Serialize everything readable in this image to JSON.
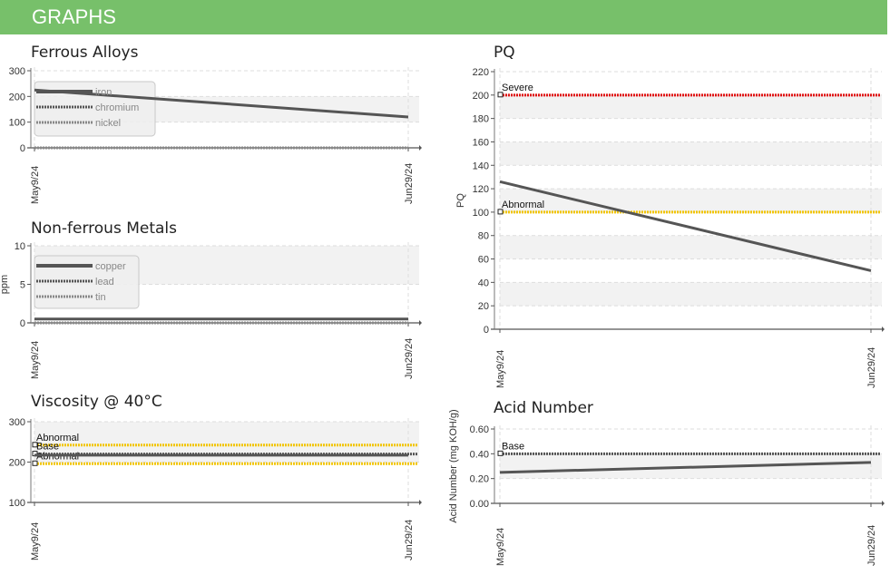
{
  "header": {
    "title": "GRAPHS"
  },
  "chart_data": [
    {
      "id": "ferrous",
      "type": "line",
      "title": "Ferrous Alloys",
      "ylabel": "",
      "ylim": [
        0,
        300
      ],
      "yticks": [
        0,
        100,
        200,
        300
      ],
      "yticks_text": [
        "0",
        "100",
        "200",
        "300"
      ],
      "x": [
        "May9/24",
        "Jun29/24"
      ],
      "series": [
        {
          "name": "iron",
          "values": [
            225,
            120
          ],
          "color": "#555555",
          "style": "solid"
        },
        {
          "name": "chromium",
          "values": [
            0,
            0
          ],
          "color": "#555555",
          "style": "dotted"
        },
        {
          "name": "nickel",
          "values": [
            0,
            0
          ],
          "color": "#888888",
          "style": "dotted"
        }
      ],
      "legend": "top-left",
      "grid": true
    },
    {
      "id": "nonferrous",
      "type": "line",
      "title": "Non-ferrous Metals",
      "ylabel": "ppm",
      "ylim": [
        0,
        10
      ],
      "yticks": [
        0,
        5,
        10
      ],
      "yticks_text": [
        "0",
        "5",
        "10"
      ],
      "x": [
        "May9/24",
        "Jun29/24"
      ],
      "series": [
        {
          "name": "copper",
          "values": [
            0.5,
            0.5
          ],
          "color": "#555555",
          "style": "solid"
        },
        {
          "name": "lead",
          "values": [
            0,
            0
          ],
          "color": "#555555",
          "style": "dotted"
        },
        {
          "name": "tin",
          "values": [
            0,
            0
          ],
          "color": "#888888",
          "style": "dotted"
        }
      ],
      "legend": "top-left",
      "grid": true
    },
    {
      "id": "viscosity",
      "type": "line",
      "title": "Viscosity @ 40°C",
      "ylabel": "",
      "ylim": [
        100,
        300
      ],
      "yticks": [
        100,
        200,
        300
      ],
      "yticks_text": [
        "100",
        "200",
        "300"
      ],
      "x": [
        "May9/24",
        "Jun29/24"
      ],
      "series": [
        {
          "values": [
            217,
            217
          ],
          "color": "#555555",
          "style": "solid"
        }
      ],
      "limits": [
        {
          "label": "Abnormal",
          "value": 242,
          "color": "#f2c500"
        },
        {
          "label": "Base",
          "value": 220,
          "color": "#555555"
        },
        {
          "label": "Abnormal",
          "value": 196,
          "color": "#f2c500"
        }
      ],
      "grid": true
    },
    {
      "id": "pq",
      "type": "line",
      "title": "PQ",
      "ylabel": "PQ",
      "ylim": [
        0,
        220
      ],
      "yticks": [
        0,
        20,
        40,
        60,
        80,
        100,
        120,
        140,
        160,
        180,
        200,
        220
      ],
      "yticks_text": [
        "0",
        "20",
        "40",
        "60",
        "80",
        "100",
        "120",
        "140",
        "160",
        "180",
        "200",
        "220"
      ],
      "x": [
        "May9/24",
        "Jun29/24"
      ],
      "series": [
        {
          "values": [
            126,
            50
          ],
          "color": "#555555",
          "style": "solid"
        }
      ],
      "limits": [
        {
          "label": "Severe",
          "value": 200,
          "color": "#e01010"
        },
        {
          "label": "Abnormal",
          "value": 100,
          "color": "#f2c500"
        }
      ],
      "grid": true
    },
    {
      "id": "acid",
      "type": "line",
      "title": "Acid Number",
      "ylabel": "Acid Number (mg KOH/g)",
      "ylim": [
        0,
        0.6
      ],
      "yticks": [
        0,
        0.2,
        0.4,
        0.6
      ],
      "yticks_text": [
        "0.00",
        "0.20",
        "0.40",
        "0.60"
      ],
      "x": [
        "May9/24",
        "Jun29/24"
      ],
      "series": [
        {
          "values": [
            0.25,
            0.33
          ],
          "color": "#555555",
          "style": "solid"
        }
      ],
      "limits": [
        {
          "label": "Base",
          "value": 0.4,
          "color": "#555555"
        }
      ],
      "grid": true
    }
  ]
}
